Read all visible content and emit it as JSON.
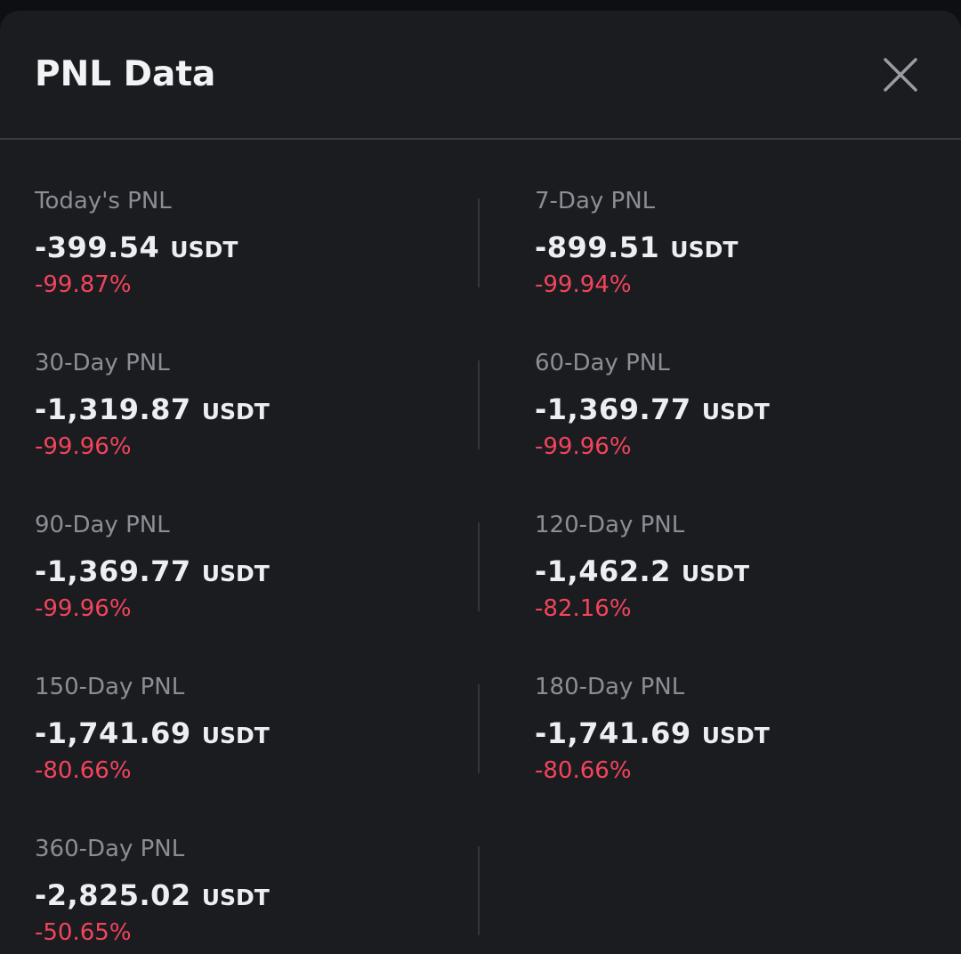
{
  "header": {
    "title": "PNL Data"
  },
  "colors": {
    "negative": "#f2445c",
    "background": "#1b1c20"
  },
  "pnl": [
    {
      "label": "Today's PNL",
      "amount": "-399.54",
      "unit": "USDT",
      "percent": "-99.87%"
    },
    {
      "label": "7-Day PNL",
      "amount": "-899.51",
      "unit": "USDT",
      "percent": "-99.94%"
    },
    {
      "label": "30-Day PNL",
      "amount": "-1,319.87",
      "unit": "USDT",
      "percent": "-99.96%"
    },
    {
      "label": "60-Day PNL",
      "amount": "-1,369.77",
      "unit": "USDT",
      "percent": "-99.96%"
    },
    {
      "label": "90-Day PNL",
      "amount": "-1,369.77",
      "unit": "USDT",
      "percent": "-99.96%"
    },
    {
      "label": "120-Day PNL",
      "amount": "-1,462.2",
      "unit": "USDT",
      "percent": "-82.16%"
    },
    {
      "label": "150-Day PNL",
      "amount": "-1,741.69",
      "unit": "USDT",
      "percent": "-80.66%"
    },
    {
      "label": "180-Day PNL",
      "amount": "-1,741.69",
      "unit": "USDT",
      "percent": "-80.66%"
    },
    {
      "label": "360-Day PNL",
      "amount": "-2,825.02",
      "unit": "USDT",
      "percent": "-50.65%"
    }
  ]
}
